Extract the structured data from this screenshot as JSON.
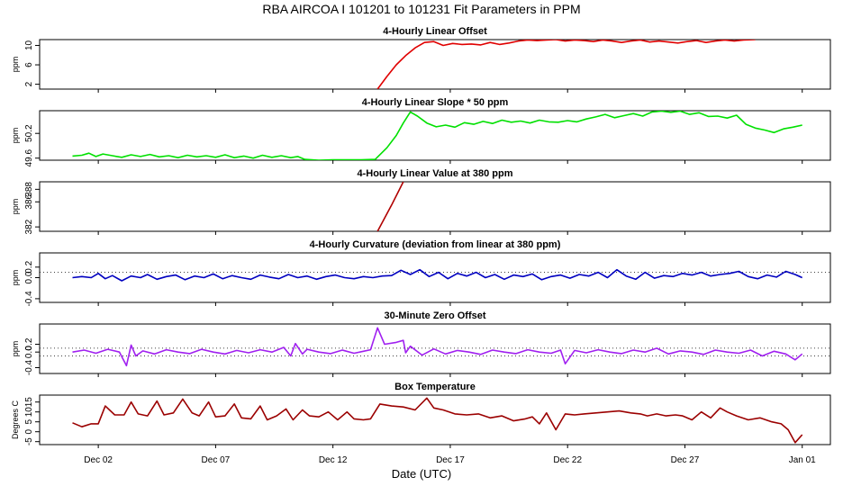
{
  "figure_title": "RBA   AIRCOA I   101201 to 101231   Fit Parameters in PPM",
  "xlabel": "Date (UTC)",
  "x_ticks": [
    "Dec 02",
    "Dec 07",
    "Dec 12",
    "Dec 17",
    "Dec 22",
    "Dec 27",
    "Jan 01"
  ],
  "x_tick_days": [
    1,
    6,
    11,
    16,
    21,
    26,
    31
  ],
  "x_range_days": [
    -1.5,
    32.2
  ],
  "colors": {
    "offset": "#e00000",
    "slope": "#00e000",
    "value": "#b00000",
    "curvature": "#0000c0",
    "zero": "#a020f0",
    "temperature": "#9b0000",
    "axis": "#000000"
  },
  "chart_data": [
    {
      "id": "offset",
      "type": "line",
      "title": "4-Hourly Linear Offset",
      "ylabel": "ppm",
      "yticks": [
        "2",
        "6",
        "10"
      ],
      "ytick_values": [
        2,
        6,
        10
      ],
      "ylim": [
        1,
        11.2
      ],
      "color_key": "offset",
      "x": [
        12.9,
        13.3,
        13.7,
        14.1,
        14.5,
        14.9,
        15.3,
        15.7,
        16.1,
        16.5,
        16.9,
        17.3,
        17.7,
        18.1,
        18.5,
        18.9,
        19.3,
        19.7,
        20.1,
        20.5,
        20.9,
        21.3,
        21.7,
        22.1,
        22.5,
        22.9,
        23.3,
        23.7,
        24.1,
        24.5,
        24.9,
        25.3,
        25.7,
        26.1,
        26.5,
        26.9,
        27.3,
        27.7,
        28.1,
        28.5,
        29.0
      ],
      "y": [
        1.0,
        3.6,
        6.0,
        7.9,
        9.5,
        10.6,
        10.8,
        10.0,
        10.4,
        10.2,
        10.3,
        10.1,
        10.6,
        10.2,
        10.5,
        10.9,
        11.1,
        11.0,
        11.1,
        11.2,
        10.9,
        11.1,
        11.0,
        10.8,
        11.1,
        10.9,
        10.6,
        10.9,
        11.1,
        10.7,
        10.9,
        10.7,
        10.5,
        10.8,
        11.0,
        10.6,
        10.9,
        11.1,
        10.9,
        11.1,
        11.2
      ]
    },
    {
      "id": "slope",
      "type": "line",
      "title": "4-Hourly Linear Slope * 50 ppm",
      "ylabel": "ppm",
      "yticks": [
        "49.6",
        "50.2"
      ],
      "ytick_values": [
        49.6,
        50.2
      ],
      "ylim": [
        49.55,
        50.75
      ],
      "color_key": "slope",
      "x": [
        -0.1,
        0.3,
        0.6,
        0.9,
        1.2,
        1.6,
        2.0,
        2.4,
        2.8,
        3.2,
        3.6,
        4.0,
        4.4,
        4.8,
        5.2,
        5.6,
        6.0,
        6.4,
        6.8,
        7.2,
        7.6,
        8.0,
        8.4,
        8.8,
        9.2,
        9.5,
        9.8,
        10.4,
        11.0,
        12.2,
        12.8,
        13.3,
        13.7,
        14.0,
        14.3,
        14.6,
        15.0,
        15.4,
        15.8,
        16.2,
        16.6,
        17.0,
        17.4,
        17.8,
        18.2,
        18.6,
        19.0,
        19.4,
        19.8,
        20.2,
        20.6,
        21.0,
        21.4,
        21.8,
        22.2,
        22.6,
        23.0,
        23.4,
        23.8,
        24.2,
        24.6,
        25.0,
        25.4,
        25.8,
        26.2,
        26.6,
        27.0,
        27.4,
        27.8,
        28.2,
        28.6,
        29.0,
        29.4,
        29.8,
        30.2,
        30.6,
        31.0
      ],
      "y": [
        49.65,
        49.67,
        49.72,
        49.64,
        49.7,
        49.66,
        49.62,
        49.68,
        49.64,
        49.69,
        49.63,
        49.66,
        49.61,
        49.67,
        49.63,
        49.66,
        49.62,
        49.68,
        49.61,
        49.65,
        49.6,
        49.67,
        49.62,
        49.66,
        49.61,
        49.64,
        49.57,
        49.55,
        49.56,
        49.56,
        49.57,
        49.85,
        50.15,
        50.45,
        50.72,
        50.62,
        50.45,
        50.36,
        50.4,
        50.35,
        50.46,
        50.42,
        50.49,
        50.44,
        50.52,
        50.47,
        50.5,
        50.45,
        50.52,
        50.48,
        50.47,
        50.51,
        50.48,
        50.55,
        50.6,
        50.66,
        50.58,
        50.63,
        50.68,
        50.62,
        50.72,
        50.74,
        50.71,
        50.74,
        50.66,
        50.7,
        50.61,
        50.62,
        50.57,
        50.64,
        50.42,
        50.33,
        50.28,
        50.22,
        50.31,
        50.35,
        50.4
      ]
    },
    {
      "id": "value",
      "type": "line",
      "title": "4-Hourly Linear Value at 380 ppm",
      "ylabel": "ppm",
      "yticks": [
        "382",
        "386",
        "388"
      ],
      "ytick_values": [
        382,
        386,
        388
      ],
      "ylim": [
        381.3,
        389.2
      ],
      "color_key": "value",
      "x": [
        12.9,
        13.5,
        14.0
      ],
      "y": [
        381.3,
        385.5,
        389.2
      ]
    },
    {
      "id": "curvature",
      "type": "line",
      "title": "4-Hourly Curvature (deviation from linear at 380 ppm)",
      "ylabel": "ppm",
      "yticks": [
        "-0.4",
        "0.0",
        "0.2"
      ],
      "ytick_values": [
        -0.4,
        0.0,
        0.2
      ],
      "ylim": [
        -0.47,
        0.47
      ],
      "ref_line": 0.1,
      "color_key": "curvature",
      "x": [
        -0.1,
        0.3,
        0.7,
        1.0,
        1.3,
        1.6,
        2.0,
        2.4,
        2.8,
        3.1,
        3.5,
        3.9,
        4.3,
        4.7,
        5.1,
        5.5,
        5.9,
        6.3,
        6.7,
        7.1,
        7.5,
        7.9,
        8.3,
        8.7,
        9.1,
        9.5,
        9.9,
        10.3,
        10.7,
        11.1,
        11.5,
        11.9,
        12.3,
        12.7,
        13.1,
        13.5,
        13.9,
        14.3,
        14.7,
        15.1,
        15.5,
        15.9,
        16.3,
        16.7,
        17.1,
        17.5,
        17.9,
        18.3,
        18.7,
        19.1,
        19.5,
        19.9,
        20.3,
        20.7,
        21.1,
        21.5,
        21.9,
        22.3,
        22.7,
        23.1,
        23.5,
        23.9,
        24.3,
        24.7,
        25.1,
        25.5,
        25.9,
        26.3,
        26.7,
        27.1,
        27.5,
        27.9,
        28.3,
        28.7,
        29.1,
        29.5,
        29.9,
        30.3,
        30.7,
        31.0
      ],
      "y": [
        0.0,
        0.02,
        0.0,
        0.08,
        -0.02,
        0.04,
        -0.06,
        0.03,
        0.0,
        0.06,
        -0.03,
        0.02,
        0.05,
        -0.04,
        0.03,
        0.0,
        0.07,
        -0.02,
        0.04,
        0.0,
        -0.03,
        0.05,
        0.01,
        -0.02,
        0.06,
        0.0,
        0.03,
        -0.03,
        0.02,
        0.05,
        0.0,
        -0.02,
        0.02,
        0.0,
        0.03,
        0.04,
        0.14,
        0.06,
        0.15,
        0.02,
        0.1,
        -0.02,
        0.08,
        0.03,
        0.1,
        0.0,
        0.06,
        -0.03,
        0.05,
        0.02,
        0.07,
        -0.04,
        0.02,
        0.05,
        -0.01,
        0.06,
        0.03,
        0.1,
        0.0,
        0.15,
        0.03,
        -0.03,
        0.1,
        -0.01,
        0.04,
        0.02,
        0.08,
        0.05,
        0.1,
        0.03,
        0.06,
        0.08,
        0.12,
        0.02,
        -0.02,
        0.05,
        0.01,
        0.12,
        0.06,
        0.0
      ]
    },
    {
      "id": "zero",
      "type": "line",
      "title": "30-Minute Zero Offset",
      "ylabel": "ppm",
      "yticks": [
        "-0.4",
        "0.0",
        "0.2"
      ],
      "ytick_values": [
        -0.4,
        0.0,
        0.2
      ],
      "ylim": [
        -0.55,
        0.72
      ],
      "ref_lines": [
        0.1,
        -0.1
      ],
      "color_key": "zero",
      "x": [
        -0.1,
        0.4,
        0.9,
        1.4,
        1.9,
        2.2,
        2.4,
        2.6,
        2.9,
        3.4,
        3.9,
        4.4,
        4.9,
        5.4,
        5.9,
        6.4,
        6.9,
        7.4,
        7.9,
        8.4,
        8.9,
        9.2,
        9.4,
        9.7,
        9.9,
        10.4,
        10.9,
        11.4,
        11.9,
        12.3,
        12.6,
        12.9,
        13.2,
        13.7,
        14.0,
        14.1,
        14.3,
        14.8,
        15.3,
        15.8,
        16.3,
        16.8,
        17.3,
        17.8,
        18.3,
        18.8,
        19.3,
        19.8,
        20.3,
        20.7,
        20.9,
        21.3,
        21.8,
        22.3,
        22.8,
        23.3,
        23.8,
        24.3,
        24.8,
        25.3,
        25.8,
        26.3,
        26.8,
        27.3,
        27.8,
        28.3,
        28.8,
        29.3,
        29.8,
        30.3,
        30.7,
        31.0
      ],
      "y": [
        0.0,
        0.05,
        -0.03,
        0.07,
        0.0,
        -0.35,
        0.18,
        -0.1,
        0.03,
        -0.05,
        0.06,
        0.0,
        -0.04,
        0.07,
        0.0,
        -0.05,
        0.04,
        -0.02,
        0.06,
        0.0,
        0.12,
        -0.1,
        0.22,
        -0.05,
        0.07,
        0.0,
        -0.04,
        0.05,
        -0.03,
        0.02,
        0.06,
        0.62,
        0.2,
        0.25,
        0.3,
        -0.02,
        0.15,
        -0.08,
        0.08,
        -0.05,
        0.04,
        0.0,
        -0.06,
        0.05,
        0.0,
        -0.04,
        0.06,
        0.0,
        -0.03,
        0.05,
        -0.3,
        0.04,
        -0.02,
        0.06,
        0.0,
        -0.04,
        0.05,
        0.0,
        0.1,
        -0.05,
        0.03,
        0.0,
        -0.06,
        0.05,
        0.0,
        -0.03,
        0.05,
        -0.1,
        0.02,
        -0.05,
        -0.2,
        -0.05
      ]
    },
    {
      "id": "temperature",
      "type": "line",
      "title": "Box Temperature",
      "ylabel": "Degrees C",
      "yticks": [
        "-5",
        "0",
        "5",
        "10",
        "15"
      ],
      "ytick_values": [
        -5,
        0,
        5,
        10,
        15
      ],
      "ylim": [
        -6.5,
        18.5
      ],
      "color_key": "temperature",
      "x": [
        -0.1,
        0.3,
        0.7,
        1.0,
        1.3,
        1.7,
        2.1,
        2.4,
        2.7,
        3.1,
        3.5,
        3.8,
        4.2,
        4.6,
        5.0,
        5.3,
        5.7,
        6.0,
        6.4,
        6.8,
        7.1,
        7.5,
        7.9,
        8.2,
        8.6,
        9.0,
        9.3,
        9.7,
        10.0,
        10.4,
        10.8,
        11.2,
        11.6,
        11.9,
        12.3,
        12.6,
        13.0,
        13.5,
        14.0,
        14.5,
        15.0,
        15.3,
        15.7,
        16.2,
        16.7,
        17.2,
        17.7,
        18.2,
        18.7,
        19.2,
        19.5,
        19.8,
        20.1,
        20.5,
        20.9,
        21.3,
        21.7,
        22.2,
        22.7,
        23.2,
        23.7,
        24.1,
        24.4,
        24.8,
        25.2,
        25.6,
        25.9,
        26.3,
        26.7,
        27.1,
        27.5,
        27.8,
        28.2,
        28.7,
        29.2,
        29.7,
        30.1,
        30.4,
        30.7,
        31.0
      ],
      "y": [
        4.5,
        2.5,
        4.0,
        4.0,
        13.0,
        8.5,
        8.5,
        15.0,
        9.0,
        8.0,
        15.5,
        8.5,
        9.5,
        16.5,
        9.5,
        8.0,
        15.0,
        7.5,
        8.0,
        14.0,
        7.0,
        6.5,
        13.0,
        6.0,
        8.0,
        11.5,
        6.0,
        11.0,
        8.0,
        7.5,
        10.0,
        6.0,
        10.0,
        6.5,
        6.0,
        6.5,
        14.0,
        13.0,
        12.5,
        11.0,
        17.0,
        12.0,
        11.0,
        9.0,
        8.5,
        9.0,
        7.0,
        8.0,
        5.5,
        6.5,
        7.5,
        4.0,
        9.5,
        1.0,
        9.0,
        8.5,
        9.0,
        9.5,
        10.0,
        10.5,
        9.5,
        9.0,
        8.0,
        9.0,
        8.0,
        8.5,
        8.0,
        6.0,
        10.0,
        7.0,
        12.0,
        10.0,
        8.0,
        6.0,
        7.0,
        5.0,
        4.0,
        1.0,
        -5.5,
        -1.5
      ]
    }
  ]
}
